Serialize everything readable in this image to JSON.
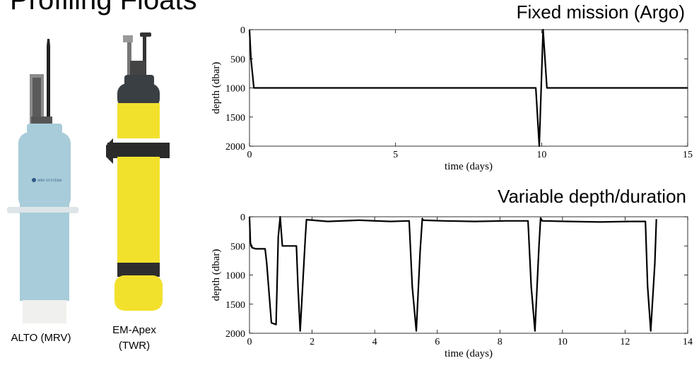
{
  "slide": {
    "title": "Profiling Floats"
  },
  "floats": [
    {
      "caption_lines": [
        "ALTO (MRV)"
      ],
      "logo_text": "MRV SYSTEMS"
    },
    {
      "caption_lines": [
        "EM-Apex",
        "(TWR)"
      ]
    }
  ],
  "colors": {
    "alto_body": "#a8ccd9",
    "apex_body": "#f2e12c",
    "apex_cap": "#3a3f44",
    "line": "#000000"
  },
  "chart_data": [
    {
      "type": "line",
      "title": "Fixed mission (Argo)",
      "xlabel": "time (days)",
      "ylabel": "depth (dbar)",
      "xlim": [
        0,
        15
      ],
      "ylim": [
        0,
        2000
      ],
      "y_inverted": true,
      "xticks": [
        0,
        5,
        10,
        15
      ],
      "yticks": [
        0,
        500,
        1000,
        1500,
        2000
      ],
      "series": [
        {
          "x": [
            0,
            0.05,
            0.15,
            0.3,
            9.8,
            9.92,
            10.05,
            10.18,
            10.3,
            15
          ],
          "y": [
            0,
            500,
            1000,
            1000,
            1000,
            2000,
            0,
            1000,
            1000,
            1000
          ]
        }
      ]
    },
    {
      "type": "line",
      "title": "Variable depth/duration",
      "xlabel": "time (days)",
      "ylabel": "depth (dbar)",
      "xlim": [
        0,
        14
      ],
      "ylim": [
        0,
        2000
      ],
      "y_inverted": true,
      "xticks": [
        0,
        2,
        4,
        6,
        8,
        10,
        12,
        14
      ],
      "yticks": [
        0,
        500,
        1000,
        1500,
        2000
      ],
      "series": [
        {
          "x": [
            0,
            0.03,
            0.08,
            0.2,
            0.5,
            0.55,
            0.7,
            0.85,
            0.92,
            0.98,
            1.05,
            1.5,
            1.55,
            1.62,
            1.78,
            1.82,
            2.5,
            3.5,
            4.5,
            5.1,
            5.2,
            5.33,
            5.45,
            5.52,
            5.55,
            6.2,
            7.2,
            8.2,
            8.9,
            9.0,
            9.12,
            9.25,
            9.3,
            9.35,
            10.2,
            11.2,
            12.2,
            12.65,
            12.72,
            12.82,
            12.95,
            13.0
          ],
          "y": [
            0,
            450,
            530,
            550,
            550,
            800,
            1820,
            1850,
            350,
            0,
            500,
            500,
            1200,
            1960,
            400,
            50,
            80,
            60,
            80,
            70,
            1200,
            1960,
            600,
            30,
            60,
            70,
            80,
            70,
            70,
            1200,
            1960,
            500,
            20,
            70,
            80,
            90,
            80,
            80,
            1200,
            1960,
            800,
            40
          ]
        }
      ]
    }
  ]
}
